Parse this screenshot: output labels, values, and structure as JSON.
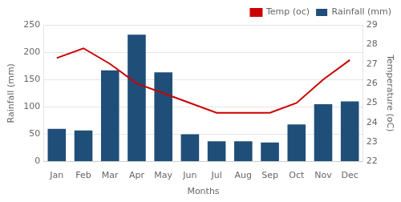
{
  "chart_data": {
    "type": "bar",
    "xlabel": "Months",
    "ylabel": "Rainfall (mm)",
    "y2label": "Temperature (oC)",
    "categories": [
      "Jan",
      "Feb",
      "Mar",
      "Apr",
      "May",
      "Jun",
      "Jul",
      "Aug",
      "Sep",
      "Oct",
      "Nov",
      "Dec"
    ],
    "series": [
      {
        "name": "Rainfall (mm)",
        "type": "bar",
        "color": "#1F4E79",
        "values": [
          60,
          57,
          167,
          232,
          163,
          50,
          37,
          37,
          35,
          68,
          105,
          110
        ]
      },
      {
        "name": "Temp (oc)",
        "type": "line",
        "axis": "y2",
        "color": "#CC0000",
        "values": [
          27.3,
          27.8,
          27.0,
          26.0,
          25.5,
          25.0,
          24.5,
          24.5,
          24.5,
          25.0,
          26.2,
          27.2
        ]
      }
    ],
    "ylim": [
      0,
      250
    ],
    "yticks": [
      0,
      50,
      100,
      150,
      200,
      250
    ],
    "y2lim": [
      22,
      29
    ],
    "y2ticks": [
      22,
      23,
      24,
      25,
      26,
      27,
      28,
      29
    ],
    "grid": true,
    "legend": "upper right"
  }
}
